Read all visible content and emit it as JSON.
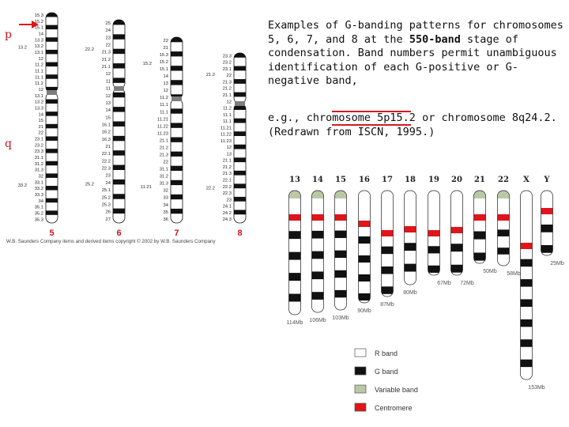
{
  "caption": {
    "paragraph1_parts": [
      "Examples of G-banding patterns for chromosomes 5, 6, 7, and 8 at the ",
      "550-band",
      " stage of condensation. Band numbers permit unambiguous identification of each G-positive or G-negative band,"
    ],
    "paragraph2": "e.g., chromosome 5p15.2 or chromosome 8q24.2. (Redrawn from ISCN, 1995.)"
  },
  "left_figure": {
    "arm_labels": {
      "p": "p",
      "q": "q"
    },
    "copyright": "W.B. Saunders Company items and derived items copyright © 2002 by W.B. Saunders Company",
    "colors": {
      "arrow": "#e0141b",
      "number": "#c8141b",
      "band": "#111111"
    },
    "chromosomes": [
      {
        "number": "5",
        "labels": [
          "15.3",
          "15.2",
          "15.1",
          "14",
          "13.3",
          "13.2",
          "13.1",
          "12",
          "11.2",
          "11.1",
          "11.1",
          "11.2",
          "12",
          "13.1",
          "13.2",
          "13.3",
          "14",
          "15",
          "21",
          "22",
          "23.1",
          "23.2",
          "23.3",
          "31.1",
          "31.2",
          "31.3",
          "32",
          "33.1",
          "33.2",
          "33.3",
          "34",
          "35.1",
          "35.2",
          "35.3"
        ],
        "extra_labels": [
          "13.2",
          "33.2"
        ]
      },
      {
        "number": "6",
        "labels": [
          "25",
          "24",
          "23",
          "22",
          "21.3",
          "21.2",
          "21.1",
          "12",
          "11",
          "11",
          "12",
          "13",
          "14",
          "15",
          "16.1",
          "16.2",
          "16.3",
          "21",
          "22.1",
          "22.2",
          "22.3",
          "23",
          "24",
          "25.1",
          "25.2",
          "25.3",
          "26",
          "27"
        ],
        "extra_labels": [
          "22.2",
          "25.2"
        ]
      },
      {
        "number": "7",
        "labels": [
          "22",
          "21",
          "15.3",
          "15.2",
          "15.1",
          "14",
          "13",
          "12",
          "11.2",
          "11.1",
          "11.1",
          "11.21",
          "11.22",
          "11.23",
          "21.1",
          "21.2",
          "21.3",
          "22",
          "31.1",
          "31.2",
          "31.3",
          "32",
          "33",
          "34",
          "35",
          "36"
        ],
        "extra_labels": [
          "15.2",
          "11.21"
        ]
      },
      {
        "number": "8",
        "labels": [
          "23.3",
          "23.2",
          "23.1",
          "22",
          "21.3",
          "21.2",
          "21.1",
          "12",
          "11.2",
          "11.1",
          "11.1",
          "11.21",
          "11.22",
          "11.23",
          "12",
          "13",
          "21.1",
          "21.2",
          "21.3",
          "22.1",
          "22.2",
          "22.3",
          "23",
          "24.1",
          "24.2",
          "24.3"
        ],
        "extra_labels": [
          "21.2",
          "22.2"
        ]
      }
    ]
  },
  "right_figure": {
    "colors": {
      "c_band": "#e0141b",
      "variable": "#b9c9a6"
    },
    "chromosomes": [
      {
        "name": "13",
        "size": "114Mb"
      },
      {
        "name": "14",
        "size": "106Mb"
      },
      {
        "name": "15",
        "size": "103Mb"
      },
      {
        "name": "16",
        "size": "90Mb"
      },
      {
        "name": "17",
        "size": "87Mb"
      },
      {
        "name": "18",
        "size": "80Mb"
      },
      {
        "name": "19",
        "size": "67Mb"
      },
      {
        "name": "20",
        "size": "72Mb"
      },
      {
        "name": "21",
        "size": "50Mb"
      },
      {
        "name": "22",
        "size": "58Mb"
      },
      {
        "name": "X",
        "size": "153Mb"
      },
      {
        "name": "Y",
        "size": "25Mb"
      }
    ],
    "legend": [
      {
        "label": "R band",
        "kind": "r"
      },
      {
        "label": "G band",
        "kind": "g"
      },
      {
        "label": "Variable band",
        "kind": "v"
      },
      {
        "label": "Centromere",
        "kind": "c"
      }
    ]
  }
}
